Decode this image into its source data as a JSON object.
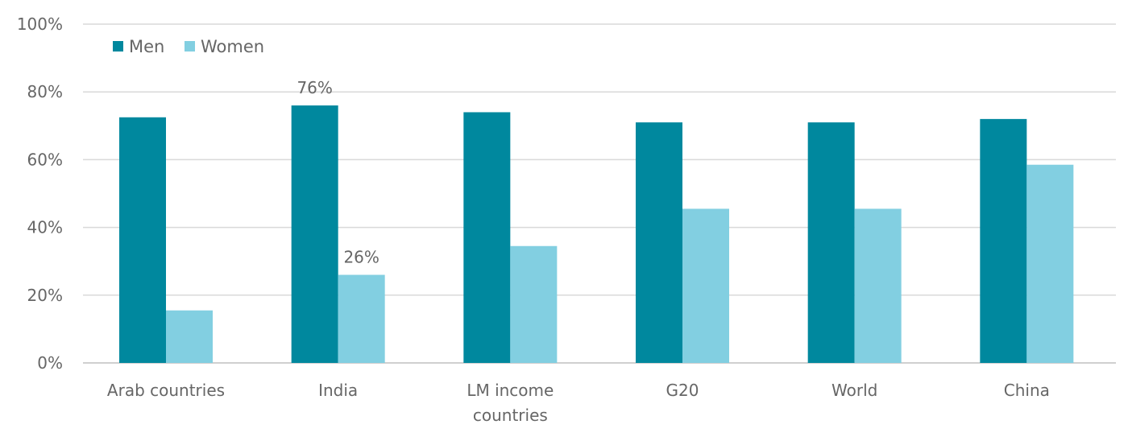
{
  "chart_data": {
    "type": "bar",
    "categories": [
      [
        "Arab countries"
      ],
      [
        "India"
      ],
      [
        "LM income",
        "countries"
      ],
      [
        "G20"
      ],
      [
        "World"
      ],
      [
        "China"
      ]
    ],
    "series": [
      {
        "name": "Men",
        "color": "#00889e",
        "values": [
          72.5,
          76,
          74,
          71,
          71,
          72
        ],
        "data_labels": [
          null,
          "76%",
          null,
          null,
          null,
          null
        ]
      },
      {
        "name": "Women",
        "color": "#82cfe1",
        "values": [
          15.5,
          26,
          34.5,
          45.5,
          45.5,
          58.5
        ],
        "data_labels": [
          null,
          "26%",
          null,
          null,
          null,
          null
        ]
      }
    ],
    "ylim": [
      0,
      100
    ],
    "yticks": [
      0,
      20,
      40,
      60,
      80,
      100
    ],
    "ytick_labels": [
      "0%",
      "20%",
      "40%",
      "60%",
      "80%",
      "100%"
    ],
    "grid": true,
    "legend_position": "top-left",
    "title": "",
    "xlabel": "",
    "ylabel": ""
  }
}
